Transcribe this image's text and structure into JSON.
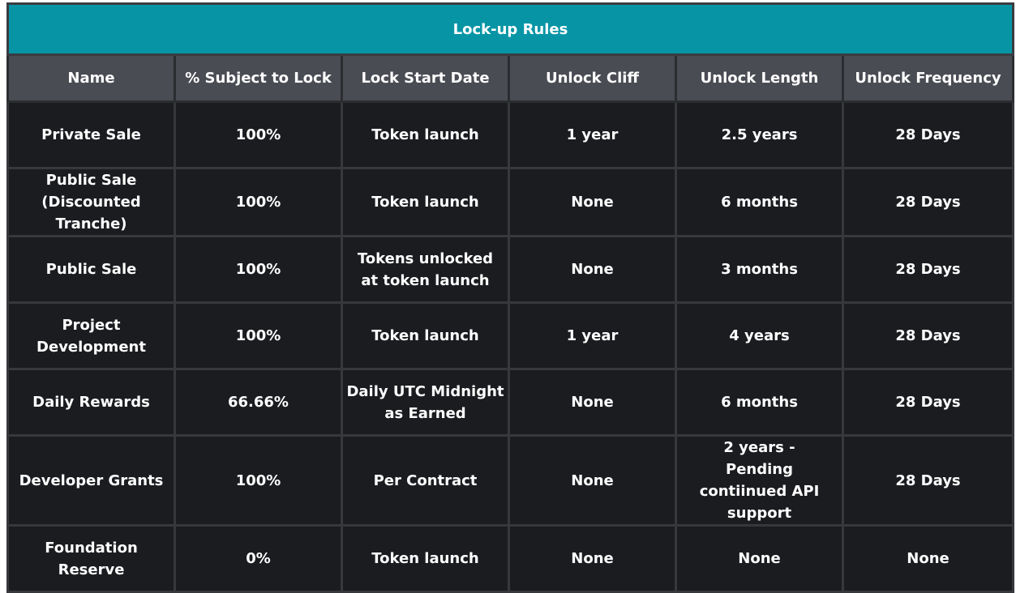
{
  "table": {
    "title": "Lock-up Rules",
    "columns": [
      "Name",
      "% Subject to Lock",
      "Lock Start Date",
      "Unlock Cliff",
      "Unlock Length",
      "Unlock Frequency"
    ],
    "rows": [
      [
        "Private Sale",
        "100%",
        "Token launch",
        "1 year",
        "2.5 years",
        "28 Days"
      ],
      [
        "Public Sale (Discounted Tranche)",
        "100%",
        "Token launch",
        "None",
        "6 months",
        "28 Days"
      ],
      [
        "Public Sale",
        "100%",
        "Tokens unlocked at token launch",
        "None",
        "3 months",
        "28 Days"
      ],
      [
        "Project Development",
        "100%",
        "Token launch",
        "1 year",
        "4 years",
        "28 Days"
      ],
      [
        "Daily Rewards",
        "66.66%",
        "Daily UTC Midnight as Earned",
        "None",
        "6 months",
        "28 Days"
      ],
      [
        "Developer Grants",
        "100%",
        "Per Contract",
        "None",
        "2 years - Pending contiinued API support",
        "28 Days"
      ],
      [
        "Foundation Reserve",
        "0%",
        "Token launch",
        "None",
        "None",
        "None"
      ]
    ]
  }
}
